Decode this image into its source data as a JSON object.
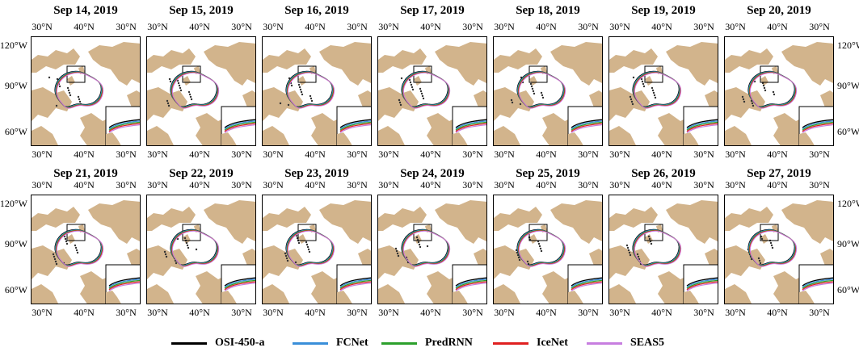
{
  "panels": [
    {
      "title": "Sep 14, 2019"
    },
    {
      "title": "Sep 15, 2019"
    },
    {
      "title": "Sep 16, 2019"
    },
    {
      "title": "Sep 17, 2019"
    },
    {
      "title": "Sep 18, 2019"
    },
    {
      "title": "Sep 19, 2019"
    },
    {
      "title": "Sep 20, 2019"
    },
    {
      "title": "Sep 21, 2019"
    },
    {
      "title": "Sep 22, 2019"
    },
    {
      "title": "Sep 23, 2019"
    },
    {
      "title": "Sep 24, 2019"
    },
    {
      "title": "Sep 25, 2019"
    },
    {
      "title": "Sep 26, 2019"
    },
    {
      "title": "Sep 27, 2019"
    }
  ],
  "ticks": {
    "lon": [
      "30°N",
      "40°N",
      "30°N"
    ],
    "lat": [
      "120°W",
      "90°W",
      "60°W"
    ]
  },
  "legend": [
    {
      "label": "OSI-450-a",
      "color": "#000000"
    },
    {
      "label": "FCNet",
      "color": "#3a8fd9"
    },
    {
      "label": "PredRNN",
      "color": "#2ca02c"
    },
    {
      "label": "IceNet",
      "color": "#e02020"
    },
    {
      "label": "SEAS5",
      "color": "#c77ee0"
    }
  ],
  "colors": {
    "land": "#d2b48c",
    "ocean": "#ffffff",
    "frame": "#000000"
  }
}
